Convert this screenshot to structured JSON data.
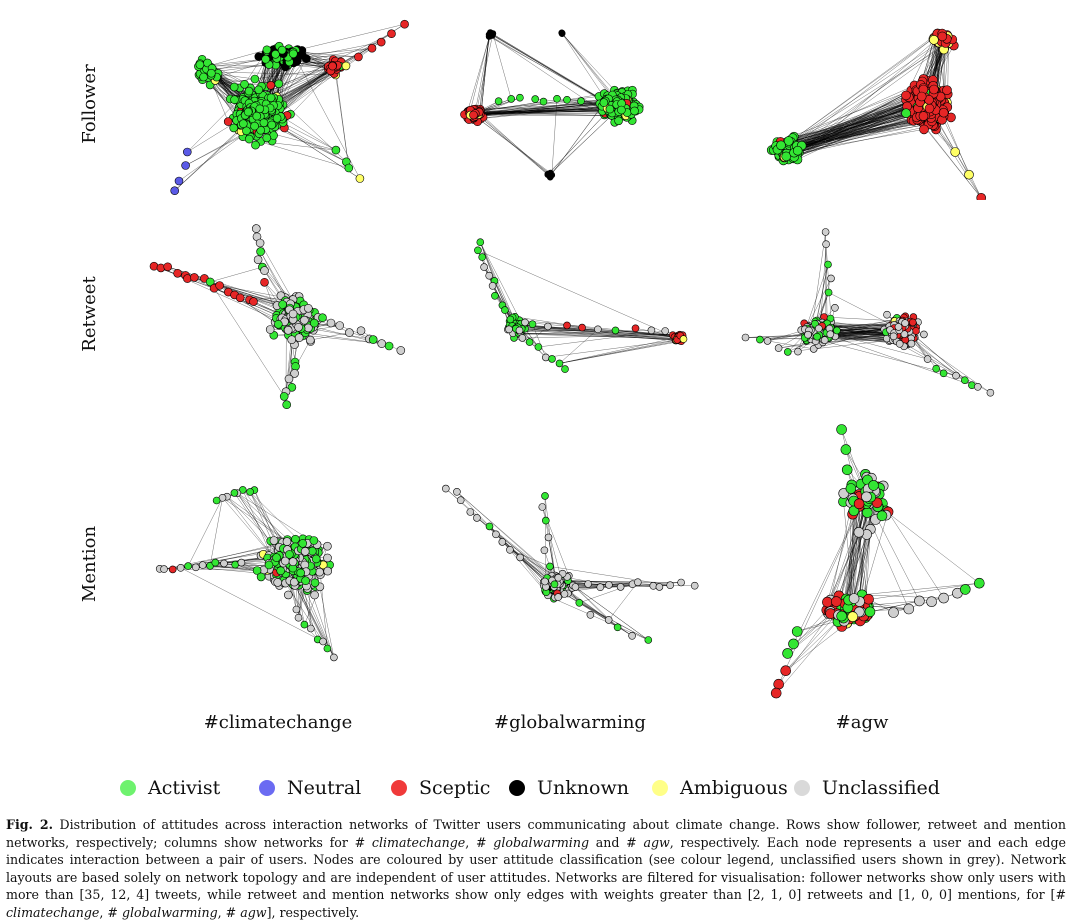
{
  "rows": [
    "Follower",
    "Retweet",
    "Mention"
  ],
  "columns": [
    "#climatechange",
    "#globalwarming",
    "#agw"
  ],
  "colors": {
    "activist": "#33e633",
    "neutral": "#5a5ae6",
    "sceptic": "#e62626",
    "unknown": "#000000",
    "ambiguous": "#ffff66",
    "unclassified": "#cfcfcf"
  },
  "legend": [
    {
      "label": "Activist",
      "color": "#6ef26e"
    },
    {
      "label": "Neutral",
      "color": "#6b6bf2"
    },
    {
      "label": "Sceptic",
      "color": "#f03a3a"
    },
    {
      "label": "Unknown",
      "color": "#000000"
    },
    {
      "label": "Ambiguous",
      "color": "#ffff88"
    },
    {
      "label": "Unclassified",
      "color": "#d9d9d9"
    }
  ],
  "caption": {
    "fig_label": "Fig. 2.",
    "segments": [
      " Distribution of attitudes across interaction networks of Twitter users communicating about climate change. Rows show follower, retweet and mention networks, respectively; columns show networks for # ",
      "climatechange",
      ", # ",
      "globalwarming",
      " and # ",
      "agw",
      ", respectively. Each node represents a user and each edge indicates interaction between a pair of users. Nodes are coloured by user attitude classification (see colour legend, unclassified users shown in grey). Network layouts are based solely on network topology and are independent of user attitudes. Networks are filtered for visualisation: follower networks show only users with more than [35, 12, 4] tweets, while retweet and mention networks show only edges with weights greater than [2, 1, 0] retweets and [1, 0, 0] mentions, for [# ",
      "climatechange",
      ", # ",
      "globalwarming",
      ", # ",
      "agw",
      "], respectively."
    ]
  }
}
